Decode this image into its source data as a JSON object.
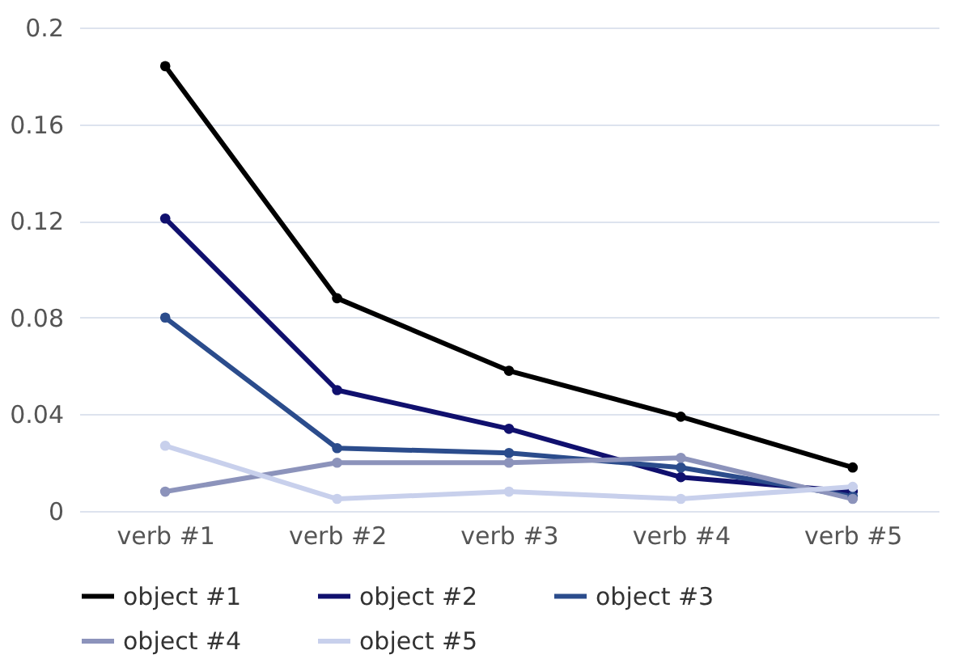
{
  "chart_data": {
    "type": "line",
    "categories": [
      "verb #1",
      "verb #2",
      "verb #3",
      "verb #4",
      "verb #5"
    ],
    "series": [
      {
        "name": "object #1",
        "color": "#000000",
        "values": [
          0.184,
          0.088,
          0.058,
          0.039,
          0.018
        ]
      },
      {
        "name": "object #2",
        "color": "#10106e",
        "values": [
          0.121,
          0.05,
          0.034,
          0.014,
          0.008
        ]
      },
      {
        "name": "object #3",
        "color": "#2b4c8c",
        "values": [
          0.08,
          0.026,
          0.024,
          0.018,
          0.006
        ]
      },
      {
        "name": "object #4",
        "color": "#8c93bb",
        "values": [
          0.008,
          0.02,
          0.02,
          0.022,
          0.005
        ]
      },
      {
        "name": "object #5",
        "color": "#c8d0ec",
        "values": [
          0.027,
          0.005,
          0.008,
          0.005,
          0.01
        ]
      }
    ],
    "ylim": [
      0,
      0.2
    ],
    "yticks": [
      0,
      0.04,
      0.08,
      0.12,
      0.16,
      0.2
    ],
    "grid": "y",
    "legend": "bottom",
    "marker": "circle",
    "line_style": "solid"
  }
}
